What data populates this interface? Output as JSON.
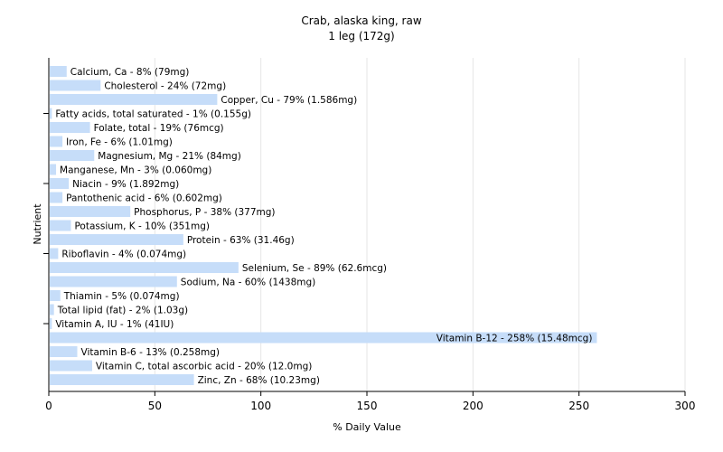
{
  "chart_data": {
    "type": "bar",
    "orientation": "horizontal",
    "title": "Crab, alaska king, raw",
    "subtitle": "1 leg (172g)",
    "xlabel": "% Daily Value",
    "ylabel": "Nutrient",
    "xlim": [
      0,
      300
    ],
    "xticks": [
      0,
      50,
      100,
      150,
      200,
      250,
      300
    ],
    "grid": true,
    "bar_color": "#c6ddf9",
    "categories": [
      "Calcium, Ca",
      "Cholesterol",
      "Copper, Cu",
      "Fatty acids, total saturated",
      "Folate, total",
      "Iron, Fe",
      "Magnesium, Mg",
      "Manganese, Mn",
      "Niacin",
      "Pantothenic acid",
      "Phosphorus, P",
      "Potassium, K",
      "Protein",
      "Riboflavin",
      "Selenium, Se",
      "Sodium, Na",
      "Thiamin",
      "Total lipid (fat)",
      "Vitamin A, IU",
      "Vitamin B-12",
      "Vitamin B-6",
      "Vitamin C, total ascorbic acid",
      "Zinc, Zn"
    ],
    "values": [
      8,
      24,
      79,
      1,
      19,
      6,
      21,
      3,
      9,
      6,
      38,
      10,
      63,
      4,
      89,
      60,
      5,
      2,
      1,
      258,
      13,
      20,
      68
    ],
    "labels": [
      "Calcium, Ca - 8% (79mg)",
      "Cholesterol - 24% (72mg)",
      "Copper, Cu - 79% (1.586mg)",
      "Fatty acids, total saturated - 1% (0.155g)",
      "Folate, total - 19% (76mcg)",
      "Iron, Fe - 6% (1.01mg)",
      "Magnesium, Mg - 21% (84mg)",
      "Manganese, Mn - 3% (0.060mg)",
      "Niacin - 9% (1.892mg)",
      "Pantothenic acid - 6% (0.602mg)",
      "Phosphorus, P - 38% (377mg)",
      "Potassium, K - 10% (351mg)",
      "Protein - 63% (31.46g)",
      "Riboflavin - 4% (0.074mg)",
      "Selenium, Se - 89% (62.6mcg)",
      "Sodium, Na - 60% (1438mg)",
      "Thiamin - 5% (0.074mg)",
      "Total lipid (fat) - 2% (1.03g)",
      "Vitamin A, IU - 1% (41IU)",
      "Vitamin B-12 - 258% (15.48mcg)",
      "Vitamin B-6 - 13% (0.258mg)",
      "Vitamin C, total ascorbic acid - 20% (12.0mg)",
      "Zinc, Zn - 68% (10.23mg)"
    ]
  }
}
